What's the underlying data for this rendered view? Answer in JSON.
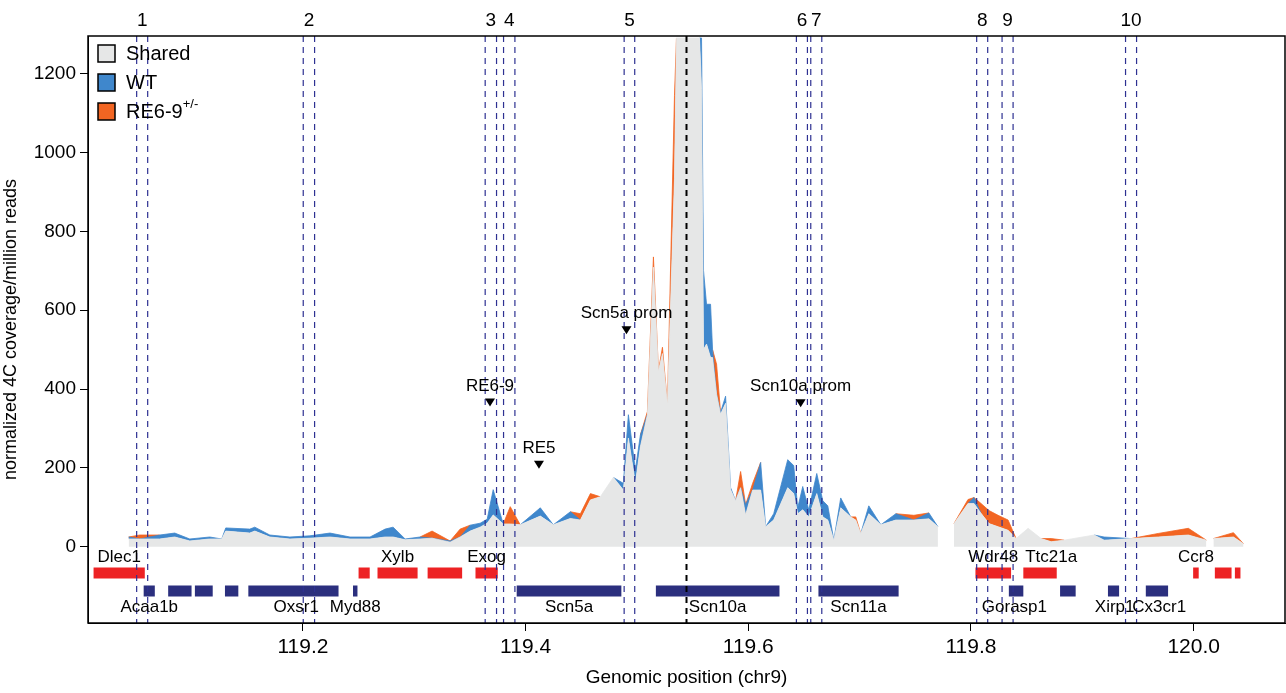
{
  "chart_data": {
    "type": "area",
    "stacked": true,
    "xlabel": "Genomic position (chr9)",
    "ylabel": "normalized 4C coverage/million reads",
    "xlim": [
      119.007,
      120.082
    ],
    "ylim": [
      -193,
      1295
    ],
    "xticks": [
      119.2,
      119.4,
      119.6,
      119.8,
      {
        "value": 120,
        "label": "120.0"
      }
    ],
    "yticks": [
      0,
      200,
      400,
      600,
      800,
      1000,
      1200
    ],
    "grid": false,
    "legend": "top left",
    "marker": "none",
    "x": [
      119.0435,
      119.0534,
      119.0714,
      119.0849,
      119.0984,
      119.1163,
      119.1271,
      119.1307,
      119.1523,
      119.1568,
      119.1703,
      119.1883,
      119.2063,
      119.2243,
      119.2423,
      119.2603,
      119.2738,
      119.281,
      119.2918,
      119.3052,
      119.316,
      119.3322,
      119.3412,
      119.3502,
      119.3592,
      119.3655,
      119.3709,
      119.3799,
      119.3862,
      119.3952,
      119.4132,
      119.4249,
      119.4402,
      119.4492,
      119.4582,
      119.4671,
      119.4788,
      119.4878,
      119.4923,
      119.4986,
      119.5031,
      119.5094,
      119.5148,
      119.5193,
      119.5229,
      119.5274,
      119.5337,
      119.5355,
      119.5562,
      119.558,
      119.5598,
      119.5625,
      119.5661,
      119.5679,
      119.5715,
      119.5751,
      119.5796,
      119.5841,
      119.5886,
      119.5931,
      119.5976,
      119.6039,
      119.6111,
      119.6156,
      119.6228,
      119.6354,
      119.6408,
      119.6444,
      119.6489,
      119.6543,
      119.6615,
      119.6669,
      119.6714,
      119.6768,
      119.683,
      119.692,
      119.6965,
      119.701,
      119.7082,
      119.719,
      119.7325,
      119.7487,
      119.7622,
      119.7703,
      119.7775,
      119.7847,
      119.7973,
      119.8027,
      119.809,
      119.8162,
      119.8243,
      119.8333,
      119.8405,
      119.8513,
      119.863,
      119.872,
      119.8837,
      119.9106,
      119.9196,
      119.9439,
      119.9682,
      119.9952,
      120.0114,
      120.0141,
      120.0177,
      120.0357,
      120.0447
    ],
    "series": [
      {
        "name": "Shared",
        "color": "#e6e7e7",
        "values": [
          20,
          20,
          20,
          25,
          15,
          20,
          20,
          40,
          35,
          40,
          25,
          20,
          22,
          25,
          20,
          20,
          25,
          25,
          18,
          20,
          22,
          12,
          25,
          40,
          50,
          60,
          81,
          58,
          58,
          56,
          78,
          56,
          72,
          68,
          119,
          127,
          176,
          144,
          276,
          161,
          254,
          335,
          709,
          446,
          490,
          361,
          933,
          1290,
          1290,
          1160,
          500,
          514,
          480,
          480,
          387,
          336,
          364,
          145,
          117,
          150,
          81,
          144,
          144,
          51,
          68,
          150,
          135,
          84,
          94,
          76,
          135,
          76,
          68,
          17,
          99,
          76,
          68,
          34,
          84,
          56,
          68,
          68,
          71,
          51,
          null,
          59,
          110,
          110,
          85,
          59,
          51,
          42,
          21,
          47,
          21,
          13,
          17,
          30,
          17,
          21,
          25,
          30,
          17,
          null,
          21,
          25,
          8
        ]
      },
      {
        "name": "WT",
        "color": "#3f87cc",
        "values": [
          5,
          0,
          10,
          10,
          5,
          5,
          0,
          8,
          10,
          10,
          5,
          5,
          6,
          10,
          5,
          5,
          20,
          25,
          2,
          5,
          0,
          3,
          0,
          15,
          10,
          10,
          64,
          0,
          null,
          0,
          21,
          0,
          17,
          0,
          null,
          null,
          0,
          17,
          59,
          34,
          30,
          0,
          null,
          null,
          null,
          null,
          null,
          null,
          0,
          130,
          200,
          101,
          135,
          20,
          0,
          5,
          18,
          5,
          0,
          0,
          26,
          0,
          70,
          0,
          16,
          71,
          71,
          15,
          59,
          18,
          51,
          41,
          36,
          0,
          25,
          0,
          null,
          0,
          20,
          0,
          16,
          0,
          15,
          0,
          null,
          null,
          0,
          15,
          0,
          null,
          null,
          null,
          null,
          null,
          null,
          null,
          null,
          0,
          8,
          0,
          null,
          null,
          null,
          null,
          null,
          null,
          null
        ]
      },
      {
        "name": "RE6-9$^{+/-}$",
        "color": "#f26522",
        "values": [
          0,
          10,
          0,
          null,
          null,
          null,
          null,
          null,
          null,
          null,
          null,
          null,
          null,
          null,
          null,
          null,
          null,
          null,
          null,
          0,
          18,
          0,
          20,
          0,
          null,
          null,
          null,
          0,
          44,
          0,
          null,
          null,
          0,
          16,
          16,
          0,
          null,
          null,
          null,
          null,
          0,
          8,
          26,
          0,
          16,
          0,
          211,
          0,
          null,
          null,
          null,
          null,
          null,
          0,
          76,
          0,
          null,
          null,
          0,
          41,
          0,
          17,
          0,
          null,
          null,
          null,
          null,
          null,
          null,
          null,
          null,
          null,
          null,
          null,
          null,
          0,
          8,
          0,
          null,
          null,
          0,
          12,
          0,
          null,
          null,
          0,
          10,
          0,
          25,
          33,
          29,
          26,
          0,
          null,
          0,
          8,
          0,
          null,
          null,
          0,
          9,
          17,
          0,
          null,
          0,
          11,
          0
        ]
      },
      {
        "type": "line",
        "color": "#ed2224",
        "x": [
          119.012,
          119.058,
          null,
          119.25,
          119.26,
          null,
          119.267,
          119.303,
          null,
          119.312,
          119.343,
          null,
          119.355,
          119.375,
          null,
          119.804,
          119.836,
          null,
          119.847,
          119.877,
          null,
          119.9995,
          120.0045,
          null,
          120.019,
          120.034,
          null,
          120.037,
          120.042
        ],
        "values": [
          -66,
          -66,
          null,
          -66,
          -66,
          null,
          -66,
          -66,
          null,
          -66,
          -66,
          null,
          -66,
          -66,
          null,
          -66,
          -66,
          null,
          -66,
          -66,
          null,
          -66,
          -66,
          null,
          -66,
          -66,
          null,
          -66,
          -66
        ]
      },
      {
        "type": "line",
        "color": "#2b2f7e",
        "x": [
          119.057,
          119.067,
          null,
          119.079,
          119.1,
          null,
          119.103,
          119.119,
          null,
          119.13,
          119.142,
          null,
          119.151,
          119.232,
          null,
          119.245,
          119.249,
          null,
          119.392,
          119.486,
          null,
          119.517,
          119.628,
          null,
          119.663,
          119.735,
          null,
          119.834,
          119.847,
          null,
          119.88,
          119.894,
          null,
          119.923,
          119.933,
          null,
          119.957,
          119.977
        ],
        "values": [
          -112,
          -112,
          null,
          -112,
          -112,
          null,
          -112,
          -112,
          null,
          -112,
          -112,
          null,
          -112,
          -112,
          null,
          -112,
          -112,
          null,
          -112,
          -112,
          null,
          -112,
          -112,
          null,
          -112,
          -112,
          null,
          -112,
          -112,
          null,
          -112,
          -112,
          null,
          -112,
          -112,
          null,
          -112,
          -112
        ]
      }
    ],
    "ref_lines": [
      {
        "axis": "x",
        "value": 119.0507,
        "color": "#2e3192",
        "line_style": "dashed"
      },
      {
        "axis": "x",
        "value": 119.0606,
        "color": "#2e3192",
        "line_style": "dashed"
      },
      {
        "axis": "x",
        "value": 119.2003,
        "color": "#2e3192",
        "line_style": "dashed"
      },
      {
        "axis": "x",
        "value": 119.2105,
        "color": "#2e3192",
        "line_style": "dashed"
      },
      {
        "axis": "x",
        "value": 119.3637,
        "color": "#2e3192",
        "line_style": "dashed"
      },
      {
        "axis": "x",
        "value": 119.3739,
        "color": "#2e3192",
        "line_style": "dashed"
      },
      {
        "axis": "x",
        "value": 119.3802,
        "color": "#2e3192",
        "line_style": "dashed"
      },
      {
        "axis": "x",
        "value": 119.3904,
        "color": "#2e3192",
        "line_style": "dashed"
      },
      {
        "axis": "x",
        "value": 119.4885,
        "color": "#2e3192",
        "line_style": "dashed"
      },
      {
        "axis": "x",
        "value": 119.498,
        "color": "#2e3192",
        "line_style": "dashed"
      },
      {
        "axis": "x",
        "value": 119.6432,
        "color": "#2e3192",
        "line_style": "dashed"
      },
      {
        "axis": "x",
        "value": 119.6531,
        "color": "#2e3192",
        "line_style": "dashed"
      },
      {
        "axis": "x",
        "value": 119.6561,
        "color": "#2e3192",
        "line_style": "dashed"
      },
      {
        "axis": "x",
        "value": 119.666,
        "color": "#2e3192",
        "line_style": "dashed"
      },
      {
        "axis": "x",
        "value": 119.8051,
        "color": "#2e3192",
        "line_style": "dashed"
      },
      {
        "axis": "x",
        "value": 119.815,
        "color": "#2e3192",
        "line_style": "dashed"
      },
      {
        "axis": "x",
        "value": 119.8279,
        "color": "#2e3192",
        "line_style": "dashed"
      },
      {
        "axis": "x",
        "value": 119.8378,
        "color": "#2e3192",
        "line_style": "dashed"
      },
      {
        "axis": "x",
        "value": 119.9388,
        "color": "#2e3192",
        "line_style": "dashed"
      },
      {
        "axis": "x",
        "value": 119.9487,
        "color": "#2e3192",
        "line_style": "dashed"
      },
      {
        "axis": "x",
        "value": 119.5445,
        "color": "#000000",
        "line_style": "dashed"
      }
    ],
    "annotations": [
      {
        "text": "1",
        "x": 119.0507,
        "y": 1295
      },
      {
        "text": "2",
        "x": 119.2003,
        "y": 1295
      },
      {
        "text": "3",
        "x": 119.3637,
        "y": 1295
      },
      {
        "text": "4",
        "x": 119.3802,
        "y": 1295
      },
      {
        "text": "5",
        "x": 119.4885,
        "y": 1295
      },
      {
        "text": "6",
        "x": 119.6432,
        "y": 1295
      },
      {
        "text": "7",
        "x": 119.6561,
        "y": 1295
      },
      {
        "text": "8",
        "x": 119.8051,
        "y": 1295
      },
      {
        "text": "9",
        "x": 119.8279,
        "y": 1295
      },
      {
        "text": "10",
        "x": 119.9388,
        "y": 1295
      },
      {
        "text": "Scn5a prom",
        "x": 119.4906,
        "y": 549
      },
      {
        "text": "Scn10a prom",
        "x": 119.647,
        "y": 364
      },
      {
        "text": "RE6-9",
        "x": 119.368,
        "y": 366
      },
      {
        "text": "RE5",
        "x": 119.412,
        "y": 208
      },
      {
        "text": "Dlec1",
        "x": 119.035,
        "y": -66
      },
      {
        "text": "Acaa1b",
        "x": 119.062,
        "y": -112
      },
      {
        "text": "Oxsr1",
        "x": 119.194,
        "y": -112
      },
      {
        "text": "Myd88",
        "x": 119.247,
        "y": -112
      },
      {
        "text": "Xylb",
        "x": 119.285,
        "y": -66
      },
      {
        "text": "Exog",
        "x": 119.365,
        "y": -66
      },
      {
        "text": "Scn5a",
        "x": 119.439,
        "y": -112
      },
      {
        "text": "Scn10a",
        "x": 119.5725,
        "y": -112
      },
      {
        "text": "Scn11a",
        "x": 119.699,
        "y": -112
      },
      {
        "text": "Wdr48",
        "x": 119.82,
        "y": -66
      },
      {
        "text": "Ttc21a",
        "x": 119.872,
        "y": -66
      },
      {
        "text": "Gorasp1",
        "x": 119.839,
        "y": -112
      },
      {
        "text": "Xirp1",
        "x": 119.929,
        "y": -112
      },
      {
        "text": "Cx3cr1",
        "x": 119.969,
        "y": -112
      },
      {
        "text": "Ccr8",
        "x": 120.002,
        "y": -66
      }
    ]
  }
}
